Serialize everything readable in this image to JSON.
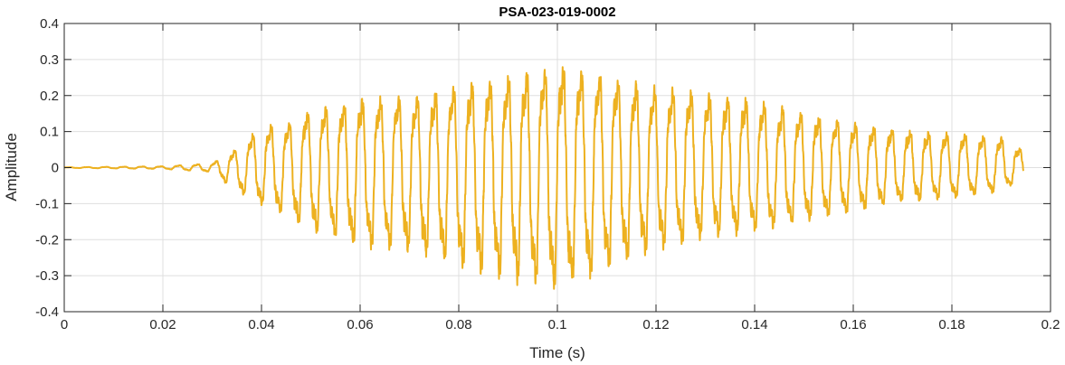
{
  "chart_data": {
    "type": "line",
    "title": "PSA-023-019-0002",
    "xlabel": "Time (s)",
    "ylabel": "Amplitude",
    "xlim": [
      0,
      0.2
    ],
    "ylim": [
      -0.4,
      0.4
    ],
    "x_ticks": [
      0,
      0.02,
      0.04,
      0.06,
      0.08,
      0.1,
      0.12,
      0.14,
      0.16,
      0.18,
      0.2
    ],
    "x_tick_labels": [
      "0",
      "0.02",
      "0.04",
      "0.06",
      "0.08",
      "0.1",
      "0.12",
      "0.14",
      "0.16",
      "0.18",
      "0.2"
    ],
    "y_ticks": [
      -0.4,
      -0.3,
      -0.2,
      -0.1,
      0,
      0.1,
      0.2,
      0.3,
      0.4
    ],
    "y_tick_labels": [
      "-0.4",
      "-0.3",
      "-0.2",
      "-0.1",
      "0",
      "0.1",
      "0.2",
      "0.3",
      "0.4"
    ],
    "grid": true,
    "legend": "none",
    "series": [
      {
        "color": "#EDB120",
        "x_start": 0,
        "x_end": 0.1945,
        "oscillation_frequency_hz": 270,
        "envelope": {
          "t": [
            0,
            0.02,
            0.03,
            0.034,
            0.04,
            0.045,
            0.05,
            0.06,
            0.07,
            0.08,
            0.09,
            0.1,
            0.11,
            0.12,
            0.13,
            0.14,
            0.15,
            0.16,
            0.17,
            0.18,
            0.19,
            0.1945
          ],
          "pos": [
            0.001,
            0.004,
            0.013,
            0.045,
            0.12,
            0.13,
            0.17,
            0.2,
            0.21,
            0.24,
            0.27,
            0.3,
            0.27,
            0.24,
            0.22,
            0.2,
            0.16,
            0.13,
            0.11,
            0.1,
            0.09,
            0.05
          ],
          "neg": [
            0.001,
            0.004,
            0.013,
            0.06,
            0.11,
            0.14,
            0.19,
            0.23,
            0.25,
            0.29,
            0.33,
            0.36,
            0.3,
            0.24,
            0.21,
            0.19,
            0.16,
            0.13,
            0.1,
            0.09,
            0.07,
            0.03
          ]
        }
      }
    ]
  }
}
